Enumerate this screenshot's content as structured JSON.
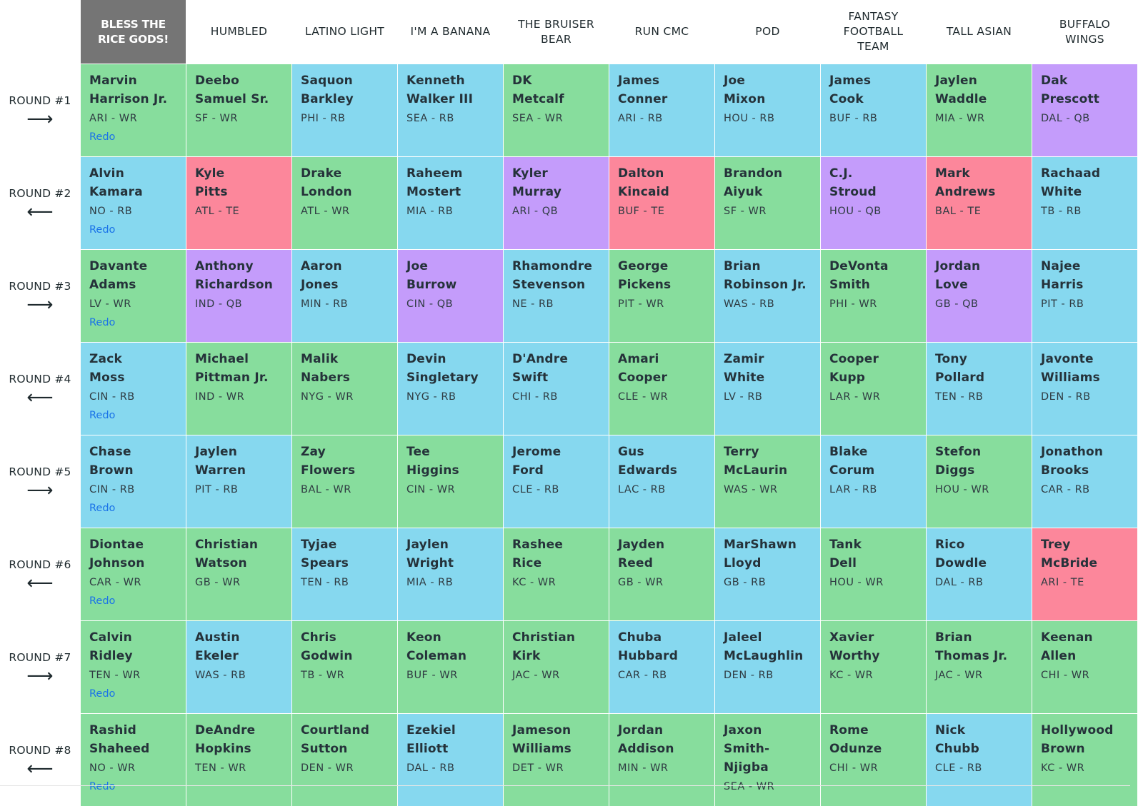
{
  "teams": [
    "BLESS THE RICE GODS!",
    "HUMBLED",
    "LATINO LIGHT",
    "I'M A BANANA",
    "THE BRUISER BEAR",
    "RUN CMC",
    "POD",
    "FANTASY FOOTBALL TEAM",
    "TALL ASIAN",
    "BUFFALO WINGS"
  ],
  "active_team_index": 0,
  "redo_label": "Redo",
  "position_colors": {
    "WR": "#87dd9d",
    "RB": "#86d8ef",
    "QB": "#c49cfb",
    "TE": "#fc879b"
  },
  "rounds": [
    {
      "label": "ROUND #1",
      "direction": "right",
      "arrow": "⟶",
      "picks": [
        {
          "first": "Marvin",
          "last": "Harrison Jr.",
          "team": "ARI",
          "pos": "WR"
        },
        {
          "first": "Deebo",
          "last": "Samuel Sr.",
          "team": "SF",
          "pos": "WR"
        },
        {
          "first": "Saquon",
          "last": "Barkley",
          "team": "PHI",
          "pos": "RB"
        },
        {
          "first": "Kenneth",
          "last": "Walker III",
          "team": "SEA",
          "pos": "RB"
        },
        {
          "first": "DK",
          "last": "Metcalf",
          "team": "SEA",
          "pos": "WR"
        },
        {
          "first": "James",
          "last": "Conner",
          "team": "ARI",
          "pos": "RB"
        },
        {
          "first": "Joe",
          "last": "Mixon",
          "team": "HOU",
          "pos": "RB"
        },
        {
          "first": "James",
          "last": "Cook",
          "team": "BUF",
          "pos": "RB"
        },
        {
          "first": "Jaylen",
          "last": "Waddle",
          "team": "MIA",
          "pos": "WR"
        },
        {
          "first": "Dak",
          "last": "Prescott",
          "team": "DAL",
          "pos": "QB"
        }
      ]
    },
    {
      "label": "ROUND #2",
      "direction": "left",
      "arrow": "⟵",
      "picks": [
        {
          "first": "Alvin",
          "last": "Kamara",
          "team": "NO",
          "pos": "RB"
        },
        {
          "first": "Kyle",
          "last": "Pitts",
          "team": "ATL",
          "pos": "TE"
        },
        {
          "first": "Drake",
          "last": "London",
          "team": "ATL",
          "pos": "WR"
        },
        {
          "first": "Raheem",
          "last": "Mostert",
          "team": "MIA",
          "pos": "RB"
        },
        {
          "first": "Kyler",
          "last": "Murray",
          "team": "ARI",
          "pos": "QB"
        },
        {
          "first": "Dalton",
          "last": "Kincaid",
          "team": "BUF",
          "pos": "TE"
        },
        {
          "first": "Brandon",
          "last": "Aiyuk",
          "team": "SF",
          "pos": "WR"
        },
        {
          "first": "C.J.",
          "last": "Stroud",
          "team": "HOU",
          "pos": "QB"
        },
        {
          "first": "Mark",
          "last": "Andrews",
          "team": "BAL",
          "pos": "TE"
        },
        {
          "first": "Rachaad",
          "last": "White",
          "team": "TB",
          "pos": "RB"
        }
      ]
    },
    {
      "label": "ROUND #3",
      "direction": "right",
      "arrow": "⟶",
      "picks": [
        {
          "first": "Davante",
          "last": "Adams",
          "team": "LV",
          "pos": "WR"
        },
        {
          "first": "Anthony",
          "last": "Richardson",
          "team": "IND",
          "pos": "QB"
        },
        {
          "first": "Aaron",
          "last": "Jones",
          "team": "MIN",
          "pos": "RB"
        },
        {
          "first": "Joe",
          "last": "Burrow",
          "team": "CIN",
          "pos": "QB"
        },
        {
          "first": "Rhamondre",
          "last": "Stevenson",
          "team": "NE",
          "pos": "RB"
        },
        {
          "first": "George",
          "last": "Pickens",
          "team": "PIT",
          "pos": "WR"
        },
        {
          "first": "Brian",
          "last": "Robinson Jr.",
          "team": "WAS",
          "pos": "RB"
        },
        {
          "first": "DeVonta",
          "last": "Smith",
          "team": "PHI",
          "pos": "WR"
        },
        {
          "first": "Jordan",
          "last": "Love",
          "team": "GB",
          "pos": "QB"
        },
        {
          "first": "Najee",
          "last": "Harris",
          "team": "PIT",
          "pos": "RB"
        }
      ]
    },
    {
      "label": "ROUND #4",
      "direction": "left",
      "arrow": "⟵",
      "picks": [
        {
          "first": "Zack",
          "last": "Moss",
          "team": "CIN",
          "pos": "RB"
        },
        {
          "first": "Michael",
          "last": "Pittman Jr.",
          "team": "IND",
          "pos": "WR"
        },
        {
          "first": "Malik",
          "last": "Nabers",
          "team": "NYG",
          "pos": "WR"
        },
        {
          "first": "Devin",
          "last": "Singletary",
          "team": "NYG",
          "pos": "RB"
        },
        {
          "first": "D'Andre",
          "last": "Swift",
          "team": "CHI",
          "pos": "RB"
        },
        {
          "first": "Amari",
          "last": "Cooper",
          "team": "CLE",
          "pos": "WR"
        },
        {
          "first": "Zamir",
          "last": "White",
          "team": "LV",
          "pos": "RB"
        },
        {
          "first": "Cooper",
          "last": "Kupp",
          "team": "LAR",
          "pos": "WR"
        },
        {
          "first": "Tony",
          "last": "Pollard",
          "team": "TEN",
          "pos": "RB"
        },
        {
          "first": "Javonte",
          "last": "Williams",
          "team": "DEN",
          "pos": "RB"
        }
      ]
    },
    {
      "label": "ROUND #5",
      "direction": "right",
      "arrow": "⟶",
      "picks": [
        {
          "first": "Chase",
          "last": "Brown",
          "team": "CIN",
          "pos": "RB"
        },
        {
          "first": "Jaylen",
          "last": "Warren",
          "team": "PIT",
          "pos": "RB"
        },
        {
          "first": "Zay",
          "last": "Flowers",
          "team": "BAL",
          "pos": "WR"
        },
        {
          "first": "Tee",
          "last": "Higgins",
          "team": "CIN",
          "pos": "WR"
        },
        {
          "first": "Jerome",
          "last": "Ford",
          "team": "CLE",
          "pos": "RB"
        },
        {
          "first": "Gus",
          "last": "Edwards",
          "team": "LAC",
          "pos": "RB"
        },
        {
          "first": "Terry",
          "last": "McLaurin",
          "team": "WAS",
          "pos": "WR"
        },
        {
          "first": "Blake",
          "last": "Corum",
          "team": "LAR",
          "pos": "RB"
        },
        {
          "first": "Stefon",
          "last": "Diggs",
          "team": "HOU",
          "pos": "WR"
        },
        {
          "first": "Jonathon",
          "last": "Brooks",
          "team": "CAR",
          "pos": "RB"
        }
      ]
    },
    {
      "label": "ROUND #6",
      "direction": "left",
      "arrow": "⟵",
      "picks": [
        {
          "first": "Diontae",
          "last": "Johnson",
          "team": "CAR",
          "pos": "WR"
        },
        {
          "first": "Christian",
          "last": "Watson",
          "team": "GB",
          "pos": "WR"
        },
        {
          "first": "Tyjae",
          "last": "Spears",
          "team": "TEN",
          "pos": "RB"
        },
        {
          "first": "Jaylen",
          "last": "Wright",
          "team": "MIA",
          "pos": "RB"
        },
        {
          "first": "Rashee",
          "last": "Rice",
          "team": "KC",
          "pos": "WR"
        },
        {
          "first": "Jayden",
          "last": "Reed",
          "team": "GB",
          "pos": "WR"
        },
        {
          "first": "MarShawn",
          "last": "Lloyd",
          "team": "GB",
          "pos": "RB"
        },
        {
          "first": "Tank",
          "last": "Dell",
          "team": "HOU",
          "pos": "WR"
        },
        {
          "first": "Rico",
          "last": "Dowdle",
          "team": "DAL",
          "pos": "RB"
        },
        {
          "first": "Trey",
          "last": "McBride",
          "team": "ARI",
          "pos": "TE"
        }
      ]
    },
    {
      "label": "ROUND #7",
      "direction": "right",
      "arrow": "⟶",
      "picks": [
        {
          "first": "Calvin",
          "last": "Ridley",
          "team": "TEN",
          "pos": "WR"
        },
        {
          "first": "Austin",
          "last": "Ekeler",
          "team": "WAS",
          "pos": "RB"
        },
        {
          "first": "Chris",
          "last": "Godwin",
          "team": "TB",
          "pos": "WR"
        },
        {
          "first": "Keon",
          "last": "Coleman",
          "team": "BUF",
          "pos": "WR"
        },
        {
          "first": "Christian",
          "last": "Kirk",
          "team": "JAC",
          "pos": "WR"
        },
        {
          "first": "Chuba",
          "last": "Hubbard",
          "team": "CAR",
          "pos": "RB"
        },
        {
          "first": "Jaleel",
          "last": "McLaughlin",
          "team": "DEN",
          "pos": "RB"
        },
        {
          "first": "Xavier",
          "last": "Worthy",
          "team": "KC",
          "pos": "WR"
        },
        {
          "first": "Brian",
          "last": "Thomas Jr.",
          "team": "JAC",
          "pos": "WR"
        },
        {
          "first": "Keenan",
          "last": "Allen",
          "team": "CHI",
          "pos": "WR"
        }
      ]
    },
    {
      "label": "ROUND #8",
      "direction": "left",
      "arrow": "⟵",
      "picks": [
        {
          "first": "Rashid",
          "last": "Shaheed",
          "team": "NO",
          "pos": "WR"
        },
        {
          "first": "DeAndre",
          "last": "Hopkins",
          "team": "TEN",
          "pos": "WR"
        },
        {
          "first": "Courtland",
          "last": "Sutton",
          "team": "DEN",
          "pos": "WR"
        },
        {
          "first": "Ezekiel",
          "last": "Elliott",
          "team": "DAL",
          "pos": "RB"
        },
        {
          "first": "Jameson",
          "last": "Williams",
          "team": "DET",
          "pos": "WR"
        },
        {
          "first": "Jordan",
          "last": "Addison",
          "team": "MIN",
          "pos": "WR"
        },
        {
          "first": "Jaxon",
          "last": "Smith-Njigba",
          "team": "SEA",
          "pos": "WR"
        },
        {
          "first": "Rome",
          "last": "Odunze",
          "team": "CHI",
          "pos": "WR"
        },
        {
          "first": "Nick",
          "last": "Chubb",
          "team": "CLE",
          "pos": "RB"
        },
        {
          "first": "Hollywood",
          "last": "Brown",
          "team": "KC",
          "pos": "WR"
        }
      ]
    }
  ]
}
